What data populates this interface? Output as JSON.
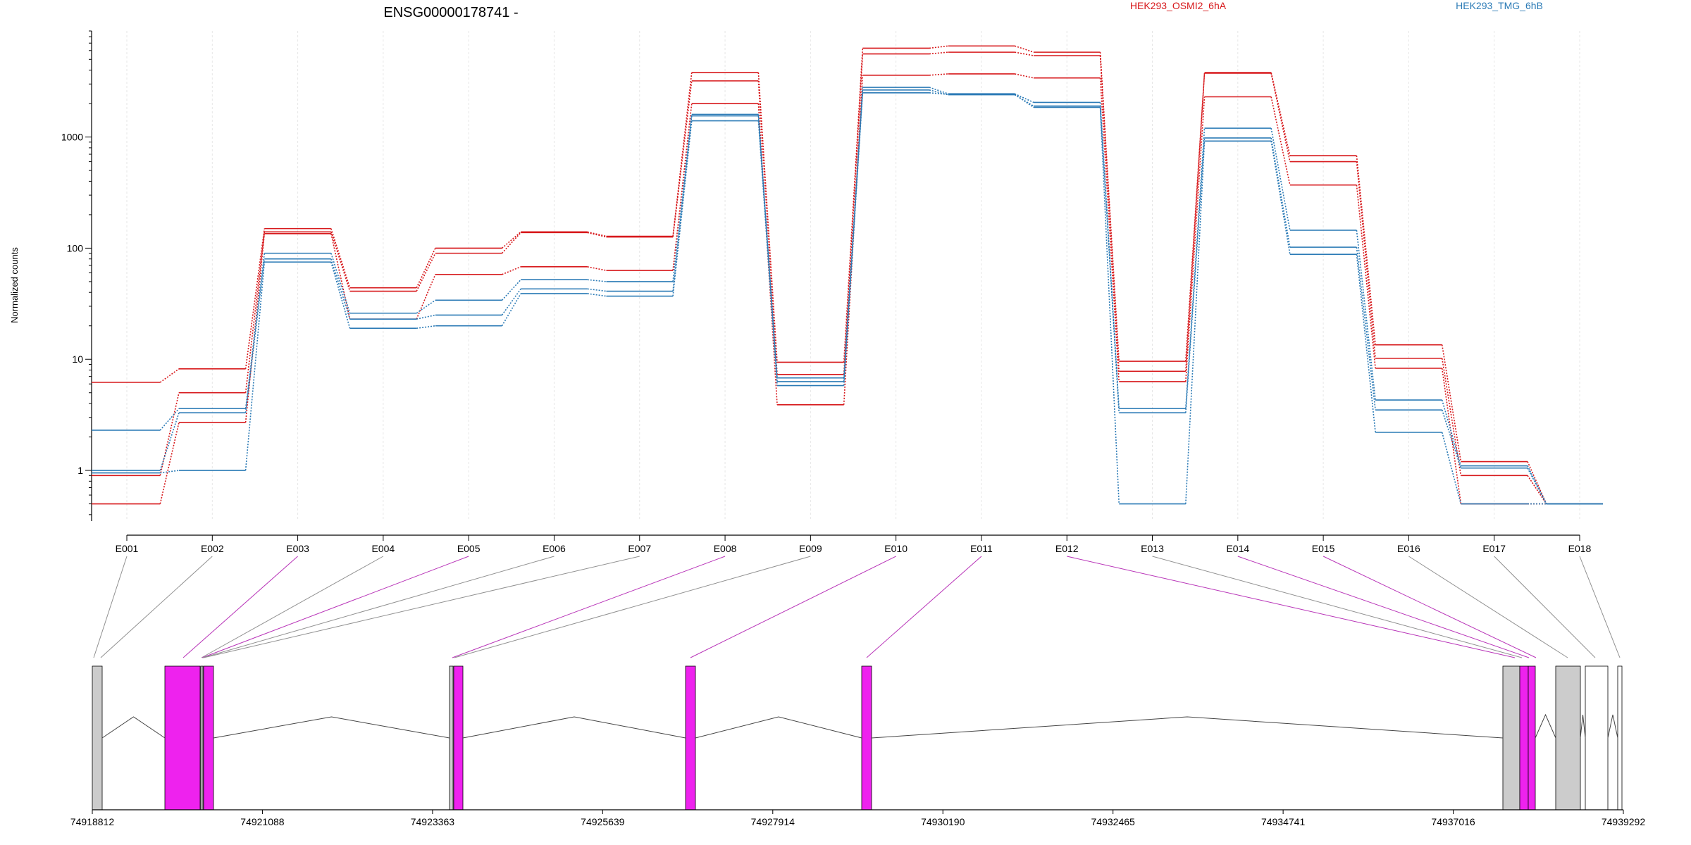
{
  "title": "ENSG00000178741 -",
  "legend": [
    {
      "label": "HEK293_OSMI2_6hA",
      "color": "#d7191c"
    },
    {
      "label": "HEK293_TMG_6hB",
      "color": "#2c7bb6"
    }
  ],
  "chart_data": {
    "type": "line",
    "ylabel": "Normalized counts",
    "yscale": "log",
    "ylim": [
      0.35,
      9000
    ],
    "yticks": [
      1,
      10,
      100,
      1000
    ],
    "ytick_labels": [
      "1",
      "10",
      "100",
      "1000"
    ],
    "categories": [
      "E001",
      "E002",
      "E003",
      "E004",
      "E005",
      "E006",
      "E007",
      "E008",
      "E009",
      "E010",
      "E011",
      "E012",
      "E013",
      "E014",
      "E015",
      "E016",
      "E017",
      "E018"
    ],
    "series": [
      {
        "group": "HEK293_OSMI2_6hA",
        "color": "#d7191c",
        "values": [
          6.2,
          8.2,
          150,
          44,
          100,
          140,
          128,
          3800,
          9.4,
          6300,
          6600,
          5800,
          9.6,
          3800,
          680,
          13.5,
          1.2,
          0.5
        ]
      },
      {
        "group": "HEK293_OSMI2_6hA",
        "color": "#d7191c",
        "values": [
          0.9,
          5,
          140,
          41,
          90,
          138,
          126,
          3200,
          7.3,
          5600,
          5800,
          5400,
          7.8,
          3750,
          600,
          10.2,
          0.9,
          0.5
        ]
      },
      {
        "group": "HEK293_OSMI2_6hA",
        "color": "#d7191c",
        "values": [
          0.5,
          2.7,
          135,
          23,
          58,
          68,
          63,
          2000,
          3.9,
          3600,
          3700,
          3400,
          6.3,
          2300,
          370,
          8.3,
          0.5,
          0.5
        ]
      },
      {
        "group": "HEK293_TMG_6hB",
        "color": "#2c7bb6",
        "values": [
          2.3,
          3.6,
          90,
          26,
          34,
          52,
          50,
          1600,
          6.8,
          2800,
          2450,
          2050,
          3.6,
          1200,
          145,
          4.3,
          1.1,
          0.5
        ]
      },
      {
        "group": "HEK293_TMG_6hB",
        "color": "#2c7bb6",
        "values": [
          1,
          3.3,
          80,
          23,
          25,
          43,
          41,
          1550,
          6.3,
          2650,
          2400,
          1900,
          3.3,
          980,
          102,
          3.5,
          1.05,
          0.5
        ]
      },
      {
        "group": "HEK293_TMG_6hB",
        "color": "#2c7bb6",
        "values": [
          0.95,
          1,
          75,
          19,
          20,
          39,
          37,
          1400,
          5.8,
          2500,
          2420,
          1850,
          0.5,
          920,
          88,
          2.2,
          0.5,
          0.5
        ]
      }
    ],
    "genome_axis": {
      "ticks": [
        "74918812",
        "74921088",
        "74923363",
        "74925639",
        "74927914",
        "74930190",
        "74932465",
        "74934741",
        "74937016",
        "74939292"
      ]
    },
    "exons": [
      {
        "id": "E001",
        "tested": false
      },
      {
        "id": "E002",
        "tested": false
      },
      {
        "id": "E003",
        "tested": true
      },
      {
        "id": "E004",
        "tested": false
      },
      {
        "id": "E005",
        "tested": true
      },
      {
        "id": "E006",
        "tested": false
      },
      {
        "id": "E007",
        "tested": false
      },
      {
        "id": "E008",
        "tested": true
      },
      {
        "id": "E009",
        "tested": false
      },
      {
        "id": "E010",
        "tested": true
      },
      {
        "id": "E011",
        "tested": true
      },
      {
        "id": "E012",
        "tested": true
      },
      {
        "id": "E013",
        "tested": false
      },
      {
        "id": "E014",
        "tested": true
      },
      {
        "id": "E015",
        "tested": true
      },
      {
        "id": "E016",
        "tested": false
      },
      {
        "id": "E017",
        "tested": false
      },
      {
        "id": "E018",
        "tested": false
      }
    ]
  }
}
